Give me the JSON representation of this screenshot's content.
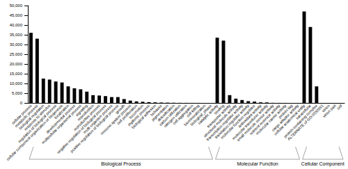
{
  "chart_data": {
    "type": "bar",
    "color": "#000000",
    "grid": false,
    "ylim": [
      0,
      50000
    ],
    "yticks": [
      0,
      5000,
      10000,
      15000,
      20000,
      25000,
      30000,
      35000,
      40000,
      45000,
      50000
    ],
    "categories": [
      "cellular process",
      "metabolic process",
      "biological regulation",
      "response to stimulus",
      "regulation of biological process",
      "cellular component organization or biogenesis",
      "localization",
      "developmental process",
      "multicellular organismal process",
      "signaling",
      "reproduction",
      "reproductive process",
      "negative regulation of biological process",
      "multi-organism process",
      "positive regulation of biological process",
      "growth",
      "immune system process",
      "cell proliferation",
      "locomotion",
      "rhythmic process",
      "biological adhesion",
      "behavior",
      "pigmentation",
      "detoxification",
      "carbon utilization",
      "nitrogen utilization",
      "cell aggregation",
      "cell killing",
      "biomineralization",
      "biological_phase",
      "catalytic activity",
      "binding",
      "transporter activity",
      "structural molecule activity",
      "transcription regulator activity",
      "translation regulator activity",
      "molecular function regulator",
      "antioxidant activity",
      "molecular transducer activity",
      "small molecule sensor activity",
      "nutrient reservoir activity",
      "molecular carrier activity",
      "protein tag",
      "cargo adaptor activity",
      "cellular anatomical entity",
      "intracellular",
      "protein-containing complex",
      "ALTERNATE of GO:0032991",
      "virion",
      "virion part",
      "cell"
    ],
    "values": [
      36000,
      33000,
      12500,
      12000,
      11000,
      10500,
      8500,
      7500,
      7000,
      5800,
      4000,
      3800,
      3500,
      3000,
      3000,
      2000,
      1200,
      800,
      600,
      400,
      300,
      200,
      150,
      100,
      50,
      40,
      30,
      20,
      10,
      5,
      33500,
      32000,
      4000,
      2200,
      1500,
      900,
      700,
      300,
      250,
      50,
      30,
      20,
      10,
      5,
      47000,
      39000,
      8500,
      10,
      5,
      5,
      5
    ],
    "category_groups": [
      "Biological Process",
      "Biological Process",
      "Biological Process",
      "Biological Process",
      "Biological Process",
      "Biological Process",
      "Biological Process",
      "Biological Process",
      "Biological Process",
      "Biological Process",
      "Biological Process",
      "Biological Process",
      "Biological Process",
      "Biological Process",
      "Biological Process",
      "Biological Process",
      "Biological Process",
      "Biological Process",
      "Biological Process",
      "Biological Process",
      "Biological Process",
      "Biological Process",
      "Biological Process",
      "Biological Process",
      "Biological Process",
      "Biological Process",
      "Biological Process",
      "Biological Process",
      "Biological Process",
      "Biological Process",
      "Molecular Function",
      "Molecular Function",
      "Molecular Function",
      "Molecular Function",
      "Molecular Function",
      "Molecular Function",
      "Molecular Function",
      "Molecular Function",
      "Molecular Function",
      "Molecular Function",
      "Molecular Function",
      "Molecular Function",
      "Molecular Function",
      "Molecular Function",
      "Cellular Component",
      "Cellular Component",
      "Cellular Component",
      "Cellular Component",
      "Cellular Component",
      "Cellular Component",
      "Cellular Component"
    ]
  }
}
